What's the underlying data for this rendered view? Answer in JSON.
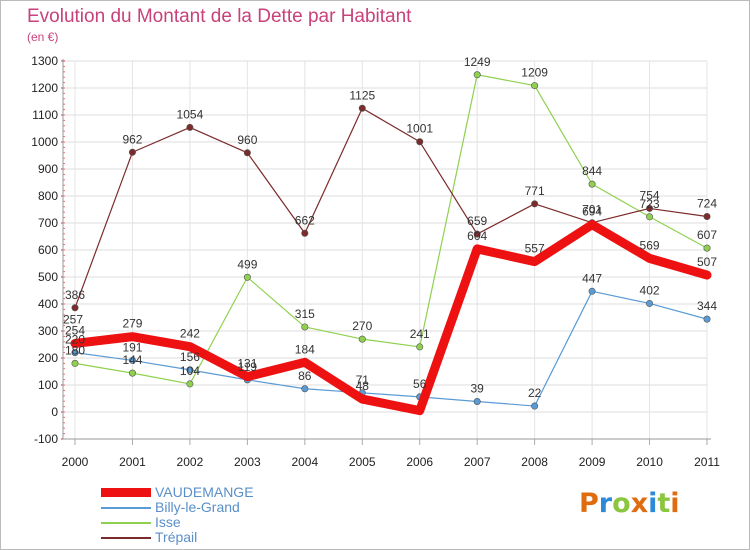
{
  "title": "Evolution du Montant de la Dette par Habitant",
  "unit": "(en €)",
  "logo": {
    "letters": [
      "P",
      "r",
      "o",
      "x",
      "i",
      "t",
      "i"
    ],
    "colors": [
      "#e06c10",
      "#2e8ad8",
      "#8cc63f",
      "#e06c10",
      "#2e8ad8",
      "#8cc63f",
      "#e06c10"
    ]
  },
  "chart_data": {
    "type": "line",
    "title": "Evolution du Montant de la Dette par Habitant",
    "ylabel": "(en €)",
    "xlabel": "",
    "x": [
      "2000",
      "2001",
      "2002",
      "2003",
      "2004",
      "2005",
      "2006",
      "2007",
      "2008",
      "2009",
      "2010",
      "2011"
    ],
    "ylim": [
      -100,
      1300
    ],
    "yticks": [
      -100,
      0,
      100,
      200,
      300,
      400,
      500,
      600,
      700,
      800,
      900,
      1000,
      1100,
      1200,
      1300
    ],
    "grid": true,
    "legend_position": "bottom-left",
    "series": [
      {
        "name": "VAUDEMANGE",
        "color": "#ee1111",
        "emphasis": true,
        "values": [
          254,
          279,
          242,
          131,
          184,
          48,
          5,
          604,
          557,
          694,
          569,
          507
        ],
        "labels": [
          "254",
          "279",
          "242",
          "131",
          "184",
          "48",
          "",
          "604",
          "557",
          "694",
          "569",
          "507"
        ]
      },
      {
        "name": "Billy-le-Grand",
        "color": "#5b9bd5",
        "values": [
          220,
          191,
          156,
          119,
          86,
          71,
          56,
          39,
          22,
          447,
          402,
          344
        ],
        "labels": [
          "220",
          "191",
          "156",
          "119",
          "86",
          "71",
          "56",
          "39",
          "22",
          "447",
          "402",
          "344"
        ]
      },
      {
        "name": "Isse",
        "color": "#8fd14f",
        "values": [
          180,
          144,
          104,
          499,
          315,
          270,
          241,
          1249,
          1209,
          844,
          723,
          607
        ],
        "labels": [
          "180",
          "144",
          "104",
          "499",
          "315",
          "270",
          "241",
          "1249",
          "1209",
          "844",
          "723",
          "607"
        ]
      },
      {
        "name": "Trépail",
        "color": "#7b2b2b",
        "values": [
          386,
          962,
          1054,
          960,
          662,
          1125,
          1001,
          659,
          771,
          701,
          754,
          724
        ],
        "labels": [
          "386",
          "962",
          "1054",
          "960",
          "662",
          "1125",
          "1001",
          "659",
          "771",
          "701",
          "754",
          "724"
        ]
      }
    ],
    "extra_labels": [
      "257"
    ]
  }
}
